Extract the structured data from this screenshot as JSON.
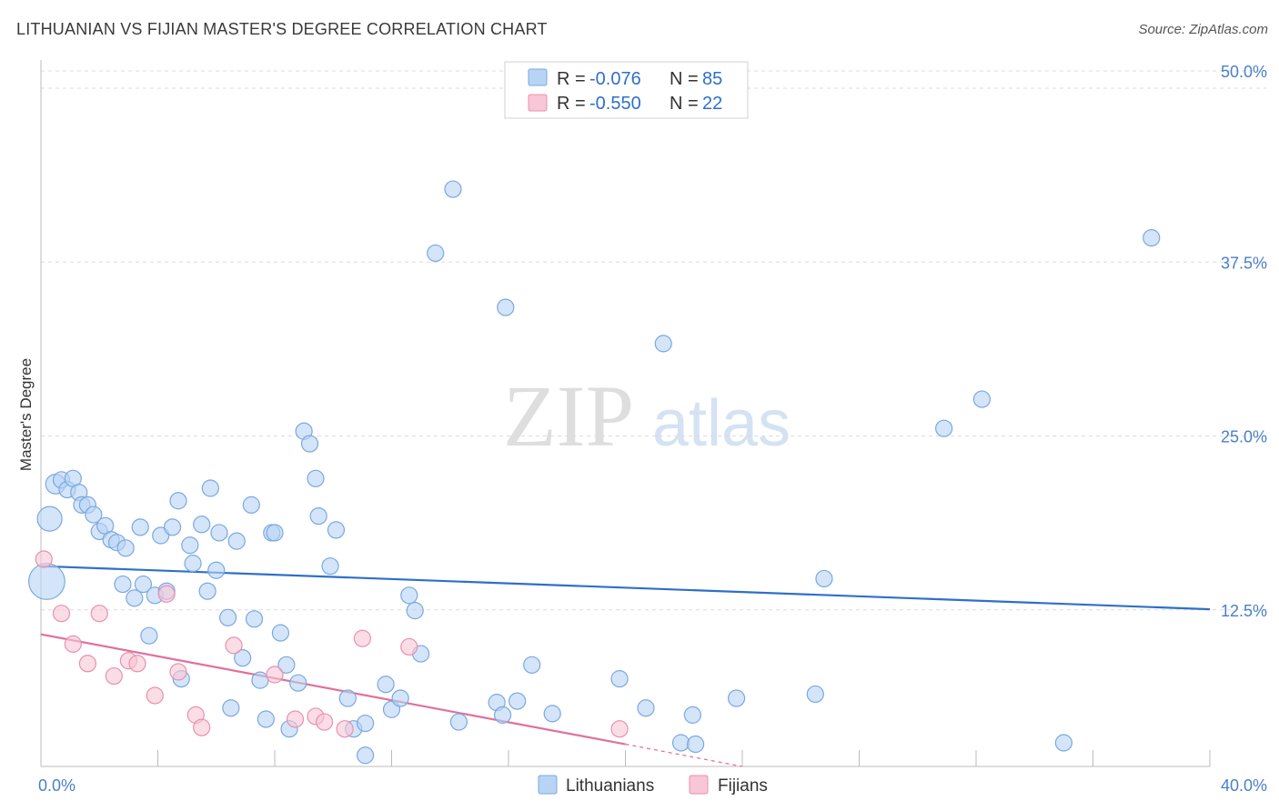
{
  "header": {
    "title": "LITHUANIAN VS FIJIAN MASTER'S DEGREE CORRELATION CHART",
    "source": "Source: ZipAtlas.com"
  },
  "watermark": {
    "zip": "ZIP",
    "atlas": "atlas"
  },
  "legend": {
    "rows": [
      {
        "r_label": "R =",
        "r_value": "-0.076",
        "n_label": "N =",
        "n_value": "85"
      },
      {
        "r_label": "R =",
        "r_value": "-0.550",
        "n_label": "N =",
        "n_value": "22"
      }
    ]
  },
  "colors": {
    "lithuanians_fill": "#b8d4f5",
    "lithuanians_stroke": "#7aa8e0",
    "lithuanians_line": "#2f6fca",
    "fijians_fill": "#f8c6d6",
    "fijians_stroke": "#e890b0",
    "fijians_line": "#e0709a",
    "value_text": "#2f6fca",
    "grid": "#dcdcdc"
  },
  "chart_data": {
    "type": "scatter",
    "title": "LITHUANIAN VS FIJIAN MASTER'S DEGREE CORRELATION CHART",
    "xlabel": "",
    "ylabel": "Master's Degree",
    "xlim": [
      0,
      40
    ],
    "ylim": [
      0,
      50
    ],
    "x_tick_labels": [
      "0.0%",
      "40.0%"
    ],
    "y_ticks": [
      12.5,
      25.0,
      37.5,
      50.0
    ],
    "y_tick_labels": [
      "12.5%",
      "25.0%",
      "37.5%",
      "50.0%"
    ],
    "grid": true,
    "legend_position": "bottom",
    "series": [
      {
        "name": "Lithuanians",
        "r": -0.076,
        "n": 85,
        "trend": {
          "x": [
            0,
            40
          ],
          "y": [
            14.4,
            11.3
          ]
        },
        "points": [
          [
            0.2,
            13.3,
            2.2
          ],
          [
            0.3,
            17.8,
            1.5
          ],
          [
            0.5,
            20.3,
            1.2
          ],
          [
            0.7,
            20.6,
            1.0
          ],
          [
            0.9,
            19.9,
            1.0
          ],
          [
            1.1,
            20.7,
            1.0
          ],
          [
            1.3,
            19.7,
            1.0
          ],
          [
            1.4,
            18.8,
            1.0
          ],
          [
            1.6,
            18.8,
            1.0
          ],
          [
            1.8,
            18.1,
            1.0
          ],
          [
            2.0,
            16.9,
            1.0
          ],
          [
            2.2,
            17.3,
            1.0
          ],
          [
            2.4,
            16.3,
            1.0
          ],
          [
            2.6,
            16.1,
            1.0
          ],
          [
            2.9,
            15.7,
            1.0
          ],
          [
            2.8,
            13.1,
            1.0
          ],
          [
            3.2,
            12.1,
            1.0
          ],
          [
            3.4,
            17.2,
            1.0
          ],
          [
            3.5,
            13.1,
            1.0
          ],
          [
            3.7,
            9.4,
            1.0
          ],
          [
            3.9,
            12.3,
            1.0
          ],
          [
            4.1,
            16.6,
            1.0
          ],
          [
            4.3,
            12.6,
            1.0
          ],
          [
            4.5,
            17.2,
            1.0
          ],
          [
            4.7,
            19.1,
            1.0
          ],
          [
            4.8,
            6.3,
            1.0
          ],
          [
            5.1,
            15.9,
            1.0
          ],
          [
            5.2,
            14.6,
            1.0
          ],
          [
            5.5,
            17.4,
            1.0
          ],
          [
            5.7,
            12.6,
            1.0
          ],
          [
            5.8,
            20.0,
            1.0
          ],
          [
            6.0,
            14.1,
            1.0
          ],
          [
            6.1,
            16.8,
            1.0
          ],
          [
            6.4,
            10.7,
            1.0
          ],
          [
            6.5,
            4.2,
            1.0
          ],
          [
            6.7,
            16.2,
            1.0
          ],
          [
            6.9,
            7.8,
            1.0
          ],
          [
            7.2,
            18.8,
            1.0
          ],
          [
            7.3,
            10.6,
            1.0
          ],
          [
            7.5,
            6.2,
            1.0
          ],
          [
            7.7,
            3.4,
            1.0
          ],
          [
            7.9,
            16.8,
            1.0
          ],
          [
            8.0,
            16.8,
            1.0
          ],
          [
            8.2,
            9.6,
            1.0
          ],
          [
            8.4,
            7.3,
            1.0
          ],
          [
            8.5,
            2.7,
            1.0
          ],
          [
            8.8,
            6.0,
            1.0
          ],
          [
            9.0,
            24.1,
            1.0
          ],
          [
            9.2,
            23.2,
            1.0
          ],
          [
            9.4,
            20.7,
            1.0
          ],
          [
            9.5,
            18.0,
            1.0
          ],
          [
            9.9,
            14.4,
            1.0
          ],
          [
            10.1,
            17.0,
            1.0
          ],
          [
            10.5,
            4.9,
            1.0
          ],
          [
            10.7,
            2.7,
            1.0
          ],
          [
            11.1,
            0.8,
            1.0
          ],
          [
            11.1,
            3.1,
            1.0
          ],
          [
            11.8,
            5.9,
            1.0
          ],
          [
            12.0,
            4.1,
            1.0
          ],
          [
            12.3,
            4.9,
            1.0
          ],
          [
            12.6,
            12.3,
            1.0
          ],
          [
            12.8,
            11.2,
            1.0
          ],
          [
            13.0,
            8.1,
            1.0
          ],
          [
            13.5,
            36.9,
            1.0
          ],
          [
            14.1,
            41.5,
            1.0
          ],
          [
            14.3,
            3.2,
            1.0
          ],
          [
            15.6,
            4.6,
            1.0
          ],
          [
            15.8,
            3.7,
            1.0
          ],
          [
            15.9,
            33.0,
            1.0
          ],
          [
            16.3,
            4.7,
            1.0
          ],
          [
            16.8,
            7.3,
            1.0
          ],
          [
            17.5,
            3.8,
            1.0
          ],
          [
            19.8,
            6.3,
            1.0
          ],
          [
            20.7,
            4.2,
            1.0
          ],
          [
            21.3,
            30.4,
            1.0
          ],
          [
            21.9,
            1.7,
            1.0
          ],
          [
            22.3,
            3.7,
            1.0
          ],
          [
            22.4,
            1.6,
            1.0
          ],
          [
            23.8,
            4.9,
            1.0
          ],
          [
            26.5,
            5.2,
            1.0
          ],
          [
            26.8,
            13.5,
            1.0
          ],
          [
            30.9,
            24.3,
            1.0
          ],
          [
            32.2,
            26.4,
            1.0
          ],
          [
            35.0,
            1.7,
            1.0
          ],
          [
            38.0,
            38.0,
            1.0
          ]
        ]
      },
      {
        "name": "Fijians",
        "r": -0.55,
        "n": 22,
        "trend": {
          "x": [
            0,
            20
          ],
          "y": [
            9.5,
            1.6
          ]
        },
        "trend_extension": {
          "x": [
            20,
            24
          ],
          "y": [
            1.6,
            0.0
          ]
        },
        "points": [
          [
            0.1,
            14.9,
            1.0
          ],
          [
            0.7,
            11.0,
            1.0
          ],
          [
            1.1,
            8.8,
            1.0
          ],
          [
            1.6,
            7.4,
            1.0
          ],
          [
            2.0,
            11.0,
            1.0
          ],
          [
            2.5,
            6.5,
            1.0
          ],
          [
            3.0,
            7.6,
            1.0
          ],
          [
            3.3,
            7.4,
            1.0
          ],
          [
            3.9,
            5.1,
            1.0
          ],
          [
            4.3,
            12.4,
            1.0
          ],
          [
            4.7,
            6.8,
            1.0
          ],
          [
            5.3,
            3.7,
            1.0
          ],
          [
            5.5,
            2.8,
            1.0
          ],
          [
            6.6,
            8.7,
            1.0
          ],
          [
            8.0,
            6.6,
            1.0
          ],
          [
            8.7,
            3.4,
            1.0
          ],
          [
            9.4,
            3.6,
            1.0
          ],
          [
            9.7,
            3.2,
            1.0
          ],
          [
            10.4,
            2.7,
            1.0
          ],
          [
            11.0,
            9.2,
            1.0
          ],
          [
            12.6,
            8.6,
            1.0
          ],
          [
            19.8,
            2.7,
            1.0
          ]
        ]
      }
    ]
  }
}
